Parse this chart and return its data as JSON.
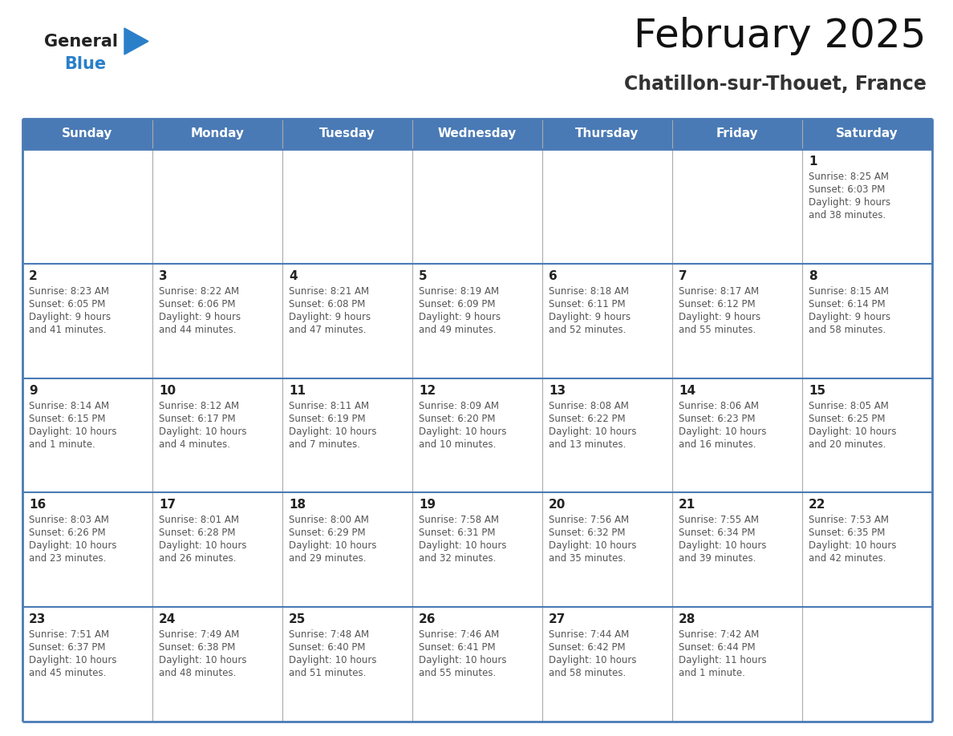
{
  "title": "February 2025",
  "subtitle": "Chatillon-sur-Thouet, France",
  "days_of_week": [
    "Sunday",
    "Monday",
    "Tuesday",
    "Wednesday",
    "Thursday",
    "Friday",
    "Saturday"
  ],
  "header_bg": "#4a7ab5",
  "header_text": "#ffffff",
  "cell_bg": "#ffffff",
  "border_color": "#4a7ab5",
  "border_color_light": "#cccccc",
  "text_color": "#555555",
  "day_num_color": "#222222",
  "logo_general_color": "#222222",
  "logo_blue_color": "#2a7fc9",
  "calendar": [
    [
      null,
      null,
      null,
      null,
      null,
      null,
      {
        "day": 1,
        "sunrise": "8:25 AM",
        "sunset": "6:03 PM",
        "daylight": "9 hours and 38 minutes."
      }
    ],
    [
      {
        "day": 2,
        "sunrise": "8:23 AM",
        "sunset": "6:05 PM",
        "daylight": "9 hours and 41 minutes."
      },
      {
        "day": 3,
        "sunrise": "8:22 AM",
        "sunset": "6:06 PM",
        "daylight": "9 hours and 44 minutes."
      },
      {
        "day": 4,
        "sunrise": "8:21 AM",
        "sunset": "6:08 PM",
        "daylight": "9 hours and 47 minutes."
      },
      {
        "day": 5,
        "sunrise": "8:19 AM",
        "sunset": "6:09 PM",
        "daylight": "9 hours and 49 minutes."
      },
      {
        "day": 6,
        "sunrise": "8:18 AM",
        "sunset": "6:11 PM",
        "daylight": "9 hours and 52 minutes."
      },
      {
        "day": 7,
        "sunrise": "8:17 AM",
        "sunset": "6:12 PM",
        "daylight": "9 hours and 55 minutes."
      },
      {
        "day": 8,
        "sunrise": "8:15 AM",
        "sunset": "6:14 PM",
        "daylight": "9 hours and 58 minutes."
      }
    ],
    [
      {
        "day": 9,
        "sunrise": "8:14 AM",
        "sunset": "6:15 PM",
        "daylight": "10 hours and 1 minute."
      },
      {
        "day": 10,
        "sunrise": "8:12 AM",
        "sunset": "6:17 PM",
        "daylight": "10 hours and 4 minutes."
      },
      {
        "day": 11,
        "sunrise": "8:11 AM",
        "sunset": "6:19 PM",
        "daylight": "10 hours and 7 minutes."
      },
      {
        "day": 12,
        "sunrise": "8:09 AM",
        "sunset": "6:20 PM",
        "daylight": "10 hours and 10 minutes."
      },
      {
        "day": 13,
        "sunrise": "8:08 AM",
        "sunset": "6:22 PM",
        "daylight": "10 hours and 13 minutes."
      },
      {
        "day": 14,
        "sunrise": "8:06 AM",
        "sunset": "6:23 PM",
        "daylight": "10 hours and 16 minutes."
      },
      {
        "day": 15,
        "sunrise": "8:05 AM",
        "sunset": "6:25 PM",
        "daylight": "10 hours and 20 minutes."
      }
    ],
    [
      {
        "day": 16,
        "sunrise": "8:03 AM",
        "sunset": "6:26 PM",
        "daylight": "10 hours and 23 minutes."
      },
      {
        "day": 17,
        "sunrise": "8:01 AM",
        "sunset": "6:28 PM",
        "daylight": "10 hours and 26 minutes."
      },
      {
        "day": 18,
        "sunrise": "8:00 AM",
        "sunset": "6:29 PM",
        "daylight": "10 hours and 29 minutes."
      },
      {
        "day": 19,
        "sunrise": "7:58 AM",
        "sunset": "6:31 PM",
        "daylight": "10 hours and 32 minutes."
      },
      {
        "day": 20,
        "sunrise": "7:56 AM",
        "sunset": "6:32 PM",
        "daylight": "10 hours and 35 minutes."
      },
      {
        "day": 21,
        "sunrise": "7:55 AM",
        "sunset": "6:34 PM",
        "daylight": "10 hours and 39 minutes."
      },
      {
        "day": 22,
        "sunrise": "7:53 AM",
        "sunset": "6:35 PM",
        "daylight": "10 hours and 42 minutes."
      }
    ],
    [
      {
        "day": 23,
        "sunrise": "7:51 AM",
        "sunset": "6:37 PM",
        "daylight": "10 hours and 45 minutes."
      },
      {
        "day": 24,
        "sunrise": "7:49 AM",
        "sunset": "6:38 PM",
        "daylight": "10 hours and 48 minutes."
      },
      {
        "day": 25,
        "sunrise": "7:48 AM",
        "sunset": "6:40 PM",
        "daylight": "10 hours and 51 minutes."
      },
      {
        "day": 26,
        "sunrise": "7:46 AM",
        "sunset": "6:41 PM",
        "daylight": "10 hours and 55 minutes."
      },
      {
        "day": 27,
        "sunrise": "7:44 AM",
        "sunset": "6:42 PM",
        "daylight": "10 hours and 58 minutes."
      },
      {
        "day": 28,
        "sunrise": "7:42 AM",
        "sunset": "6:44 PM",
        "daylight": "11 hours and 1 minute."
      },
      null
    ]
  ],
  "figsize": [
    11.88,
    9.18
  ],
  "dpi": 100
}
